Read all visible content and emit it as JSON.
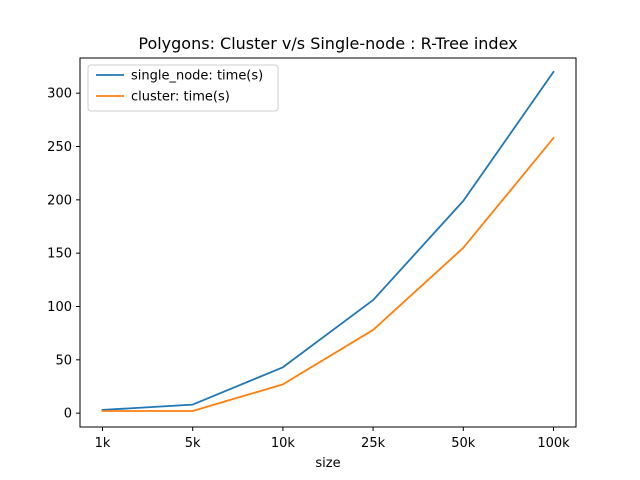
{
  "chart_data": {
    "type": "line",
    "title": "Polygons: Cluster v/s Single-node : R-Tree index",
    "xlabel": "size",
    "ylabel": "",
    "categories": [
      "1k",
      "5k",
      "10k",
      "25k",
      "50k",
      "100k"
    ],
    "ylim": [
      -13,
      333
    ],
    "yticks": [
      0,
      50,
      100,
      150,
      200,
      250,
      300
    ],
    "grid": false,
    "legend_position": "top-left",
    "series": [
      {
        "name": "single_node: time(s)",
        "color": "#1f77b4",
        "values": [
          3,
          8,
          43,
          106,
          199,
          320
        ]
      },
      {
        "name": "cluster: time(s)",
        "color": "#ff7f0e",
        "values": [
          2,
          2,
          27,
          78,
          155,
          258
        ]
      }
    ]
  }
}
